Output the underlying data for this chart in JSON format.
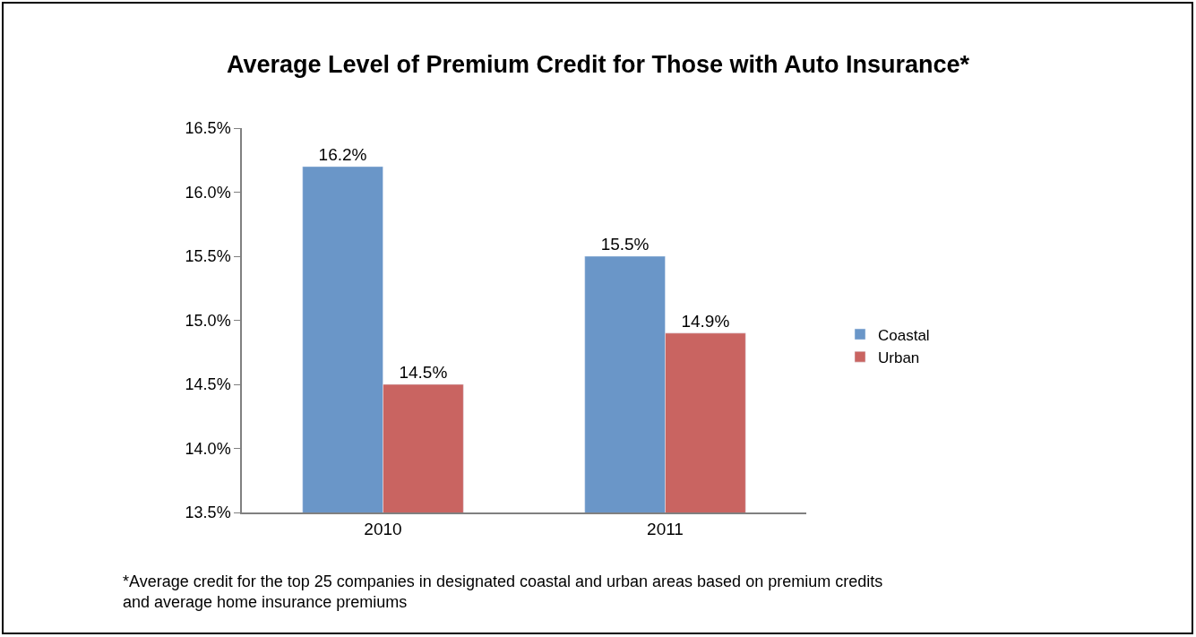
{
  "chart_data": {
    "type": "bar",
    "title": "Average Level of Premium Credit for Those with Auto Insurance*",
    "categories": [
      "2010",
      "2011"
    ],
    "series": [
      {
        "name": "Coastal",
        "color": "#6a96c8",
        "values": [
          16.2,
          15.5
        ],
        "value_labels": [
          "16.2%",
          "15.5%"
        ]
      },
      {
        "name": "Urban",
        "color": "#c96461",
        "values": [
          14.5,
          14.9
        ],
        "value_labels": [
          "14.5%",
          "14.9%"
        ]
      }
    ],
    "ylim": [
      13.5,
      16.5
    ],
    "yticks": [
      {
        "value": 13.5,
        "label": "13.5%"
      },
      {
        "value": 14.0,
        "label": "14.0%"
      },
      {
        "value": 14.5,
        "label": "14.5%"
      },
      {
        "value": 15.0,
        "label": "15.0%"
      },
      {
        "value": 15.5,
        "label": "15.5%"
      },
      {
        "value": 16.0,
        "label": "16.0%"
      },
      {
        "value": 16.5,
        "label": "16.5%"
      }
    ],
    "grid": false,
    "legend": "right",
    "annotations": [
      "*Average credit for the top 25 companies in designated coastal and urban areas based on premium credits and average home insurance premiums"
    ]
  }
}
